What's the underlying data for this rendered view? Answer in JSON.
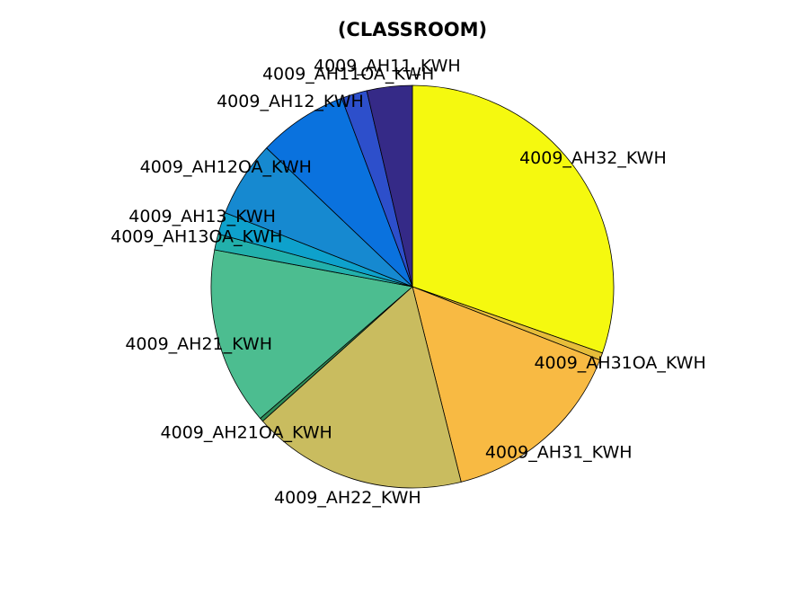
{
  "chart_data": {
    "type": "pie",
    "title": "(CLASSROOM)",
    "direction": "clockwise from top",
    "slices": [
      {
        "label": "4009_AH32_KWH",
        "percent": 30.8,
        "color": "#F5F90F"
      },
      {
        "label": "4009_AH31OA_KWH",
        "percent": 0.6,
        "color": "#E6BD3A"
      },
      {
        "label": "4009_AH31_KWH",
        "percent": 15.4,
        "color": "#F8BA43"
      },
      {
        "label": "4009_AH22_KWH",
        "percent": 17.5,
        "color": "#C9BC5F"
      },
      {
        "label": "4009_AH21OA_KWH",
        "percent": 0.3,
        "color": "#2E8B57"
      },
      {
        "label": "4009_AH21_KWH",
        "percent": 14.5,
        "color": "#4CBD90"
      },
      {
        "label": "4009_AH13OA_KWH",
        "percent": 1.3,
        "color": "#22B0AC"
      },
      {
        "label": "4009_AH13_KWH",
        "percent": 1.8,
        "color": "#0EA1CC"
      },
      {
        "label": "4009_AH12OA_KWH",
        "percent": 6.2,
        "color": "#1689D0"
      },
      {
        "label": "4009_AH12_KWH",
        "percent": 7.3,
        "color": "#0A72DE"
      },
      {
        "label": "4009_AH11OA_KWH",
        "percent": 2.1,
        "color": "#2D4FCB"
      },
      {
        "label": "4009_AH11_KWH",
        "percent": 3.7,
        "color": "#352A87"
      }
    ]
  }
}
